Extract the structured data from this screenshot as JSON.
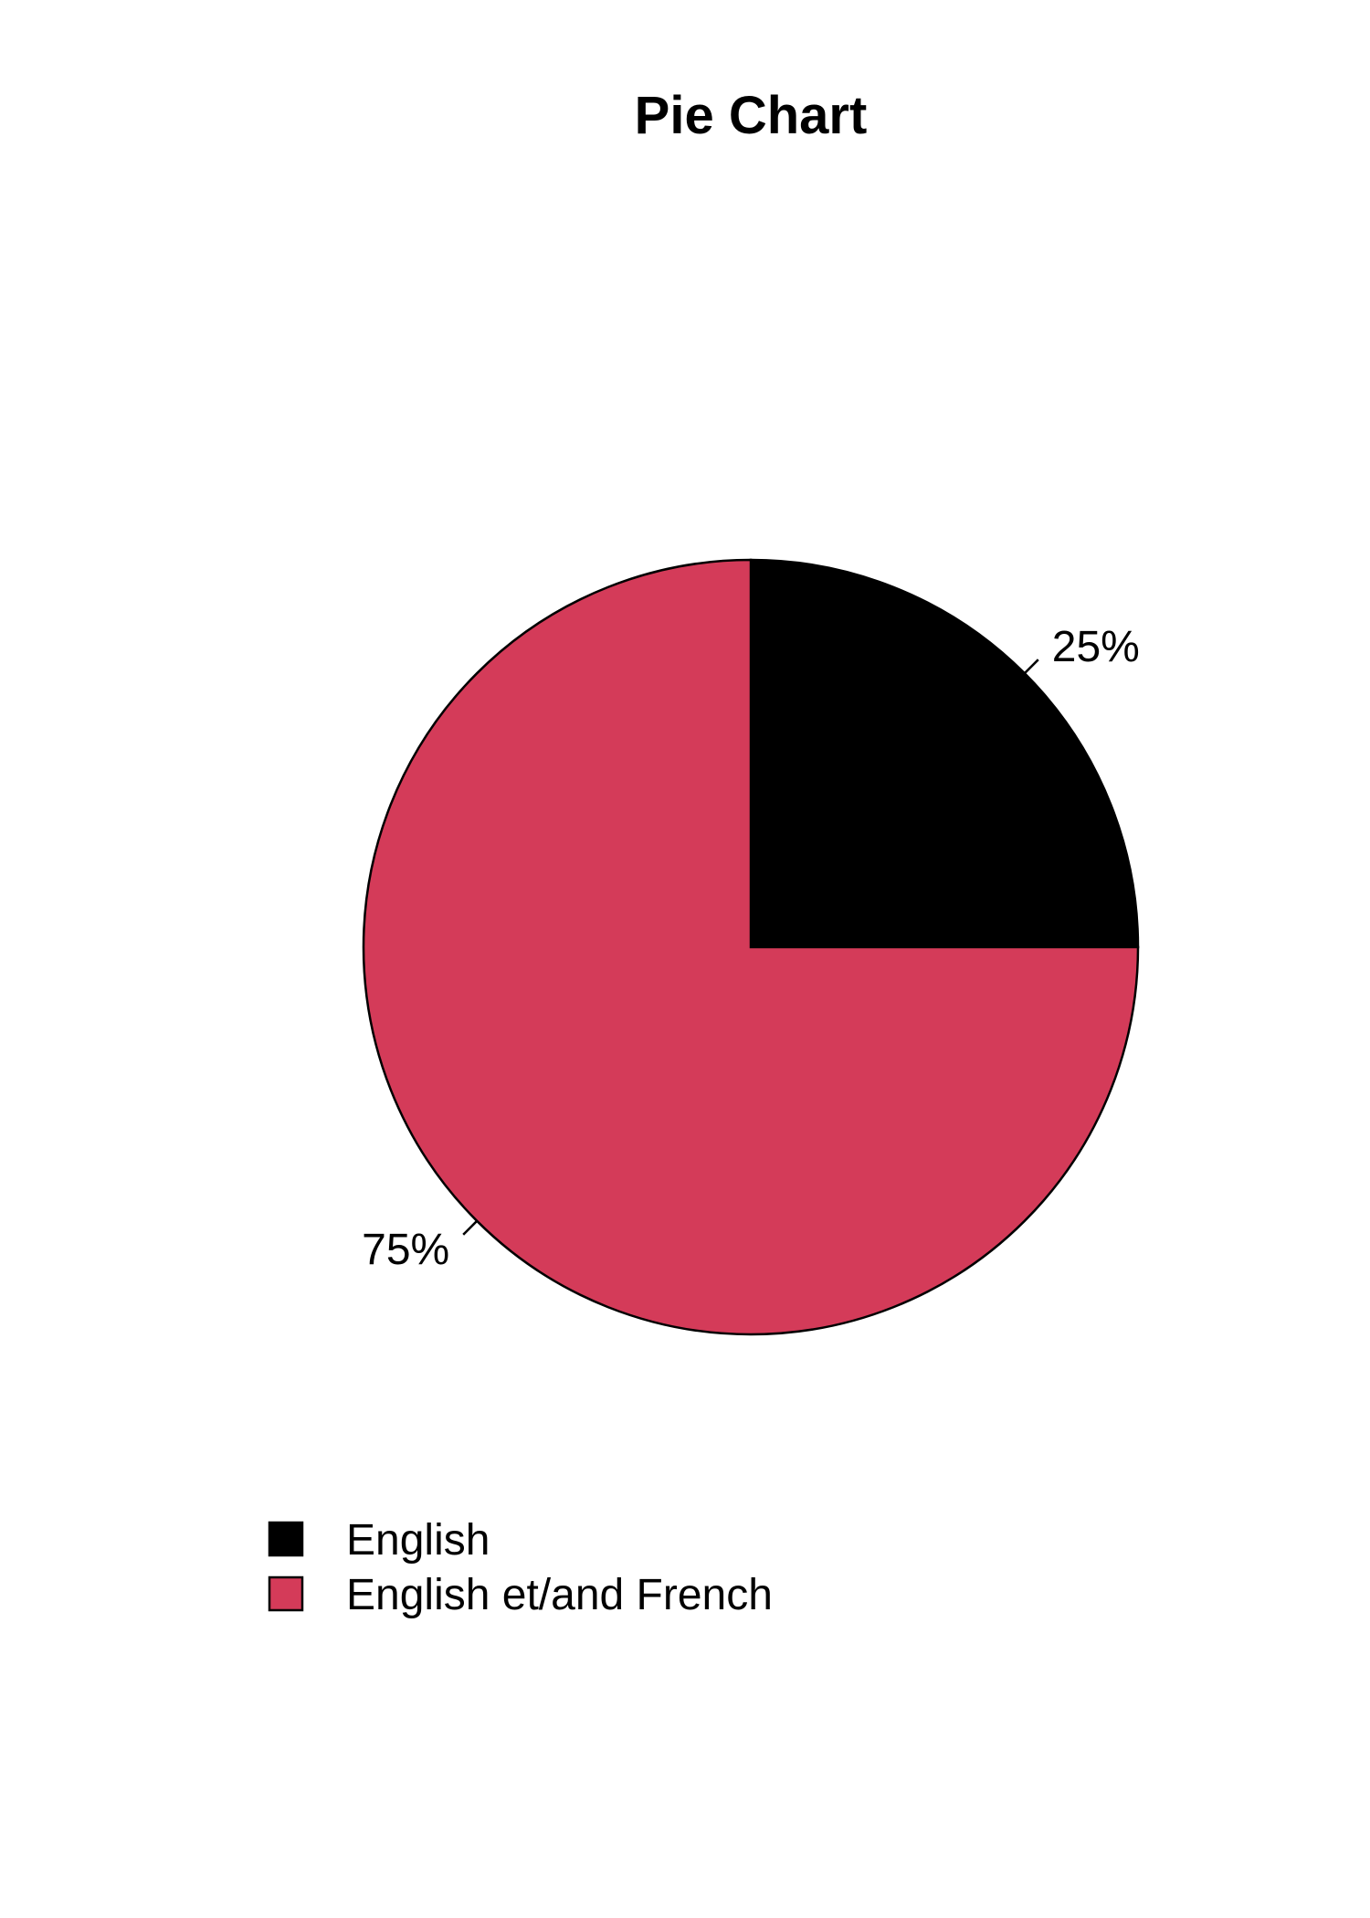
{
  "chart_data": {
    "type": "pie",
    "title": "Pie Chart",
    "categories": [
      "English",
      "English et/and French"
    ],
    "values": [
      25,
      75
    ],
    "value_labels": [
      "25%",
      "75%"
    ],
    "colors": [
      "#000000",
      "#d43b59"
    ],
    "start_angle_deg": 90,
    "direction": "clockwise",
    "legend_position": "bottom-left"
  }
}
